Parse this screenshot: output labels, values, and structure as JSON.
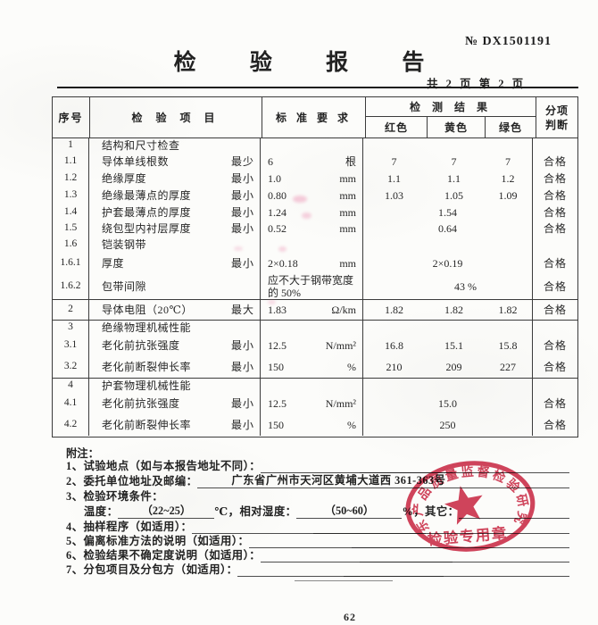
{
  "page": {
    "report_no_label": "№",
    "report_no": "DX1501191",
    "title": "检 验 报 告",
    "page_info": "共 2 页 第 2 页",
    "page_number": "62"
  },
  "table": {
    "headers": {
      "no": "序号",
      "item": "检 验 项 目",
      "std": "标 准 要 求",
      "result": "检 测 结 果",
      "sub_red": "红色",
      "sub_yellow": "黄色",
      "sub_green": "绿色",
      "verdict_line1": "分项",
      "verdict_line2": "判断"
    },
    "groups": [
      {
        "rows": [
          {
            "no": "1",
            "item": "结构和尺寸检查",
            "type": "section"
          },
          {
            "no": "1.1",
            "item": "导体单线根数",
            "qual": "最少",
            "std": "6",
            "unit": "根",
            "red": "7",
            "yellow": "7",
            "green": "7",
            "verdict": "合格"
          },
          {
            "no": "1.2",
            "item": "绝缘厚度",
            "qual": "最小",
            "std": "1.0",
            "unit": "mm",
            "red": "1.1",
            "yellow": "1.1",
            "green": "1.2",
            "verdict": "合格"
          },
          {
            "no": "1.3",
            "item": "绝缘最薄点的厚度",
            "qual": "最小",
            "std": "0.80",
            "unit": "mm",
            "red": "1.03",
            "yellow": "1.05",
            "green": "1.09",
            "verdict": "合格"
          },
          {
            "no": "1.4",
            "item": "护套最薄点的厚度",
            "qual": "最小",
            "std": "1.24",
            "unit": "mm",
            "span": "1.54",
            "verdict": "合格"
          },
          {
            "no": "1.5",
            "item": "绕包型内衬层厚度",
            "qual": "最小",
            "std": "0.52",
            "unit": "mm",
            "span": "0.64",
            "verdict": "合格"
          },
          {
            "no": "1.6",
            "item": "铠装钢带",
            "type": "section"
          },
          {
            "no": "1.6.1",
            "item": "厚度",
            "qual": "最小",
            "std": "2×0.18",
            "unit": "mm",
            "span": "2×0.19",
            "verdict": "合格"
          },
          {
            "no": "1.6.2",
            "item": "包带间隙",
            "std_text": "应不大于钢带宽度的 50%",
            "span": "43 %",
            "verdict": "合格"
          }
        ]
      },
      {
        "rows": [
          {
            "no": "2",
            "item": "导体电阻（20℃）",
            "qual": "最大",
            "std": "1.83",
            "unit": "Ω/km",
            "red": "1.82",
            "yellow": "1.82",
            "green": "1.82",
            "verdict": "合格"
          }
        ]
      },
      {
        "rows": [
          {
            "no": "3",
            "item": "绝缘物理机械性能",
            "type": "section"
          },
          {
            "no": "3.1",
            "item": "老化前抗张强度",
            "qual": "最小",
            "std": "12.5",
            "unit": "N/mm²",
            "red": "16.8",
            "yellow": "15.1",
            "green": "15.8",
            "verdict": "合格"
          },
          {
            "no": "3.2",
            "item": "老化前断裂伸长率",
            "qual": "最小",
            "std": "150",
            "unit": "%",
            "red": "210",
            "yellow": "209",
            "green": "227",
            "verdict": "合格"
          }
        ]
      },
      {
        "rows": [
          {
            "no": "4",
            "item": "护套物理机械性能",
            "type": "section"
          },
          {
            "no": "4.1",
            "item": "老化前抗张强度",
            "qual": "最小",
            "std": "12.5",
            "unit": "N/mm²",
            "span": "15.0",
            "verdict": "合格"
          },
          {
            "no": "4.2",
            "item": "老化前断裂伸长率",
            "qual": "最小",
            "std": "150",
            "unit": "%",
            "span": "250",
            "verdict": "合格"
          }
        ]
      }
    ]
  },
  "notes": {
    "heading": "附注：",
    "lines": [
      {
        "label": "1、试验地点（如与本报告地址不同）：",
        "underline": ""
      },
      {
        "label": "2、委托单位地址及邮编：",
        "underline": "广东省广州市天河区黄埔大道西 361-363号"
      },
      {
        "label": "3、检验环境条件："
      },
      {
        "parts": [
          {
            "label": "温度：",
            "underline": "（22~25）"
          },
          {
            "label": "℃，相对湿度：",
            "underline": "（50~60）"
          },
          {
            "label": "%，其它：",
            "underline": ""
          }
        ]
      },
      {
        "label": "4、抽样程序（如适用）：",
        "underline": ""
      },
      {
        "label": "5、偏离标准方法的说明（如适用）：",
        "underline": ""
      },
      {
        "label": "6、检验结果不确定度说明（如适用）：",
        "underline": ""
      },
      {
        "label": "7、分包项目及分包方（如适用）：",
        "underline": ""
      }
    ]
  },
  "stamp": {
    "ring_text": "广东产品质量监督检验研究院",
    "bottom_text": "检验专用章",
    "color": "#cf3750"
  }
}
